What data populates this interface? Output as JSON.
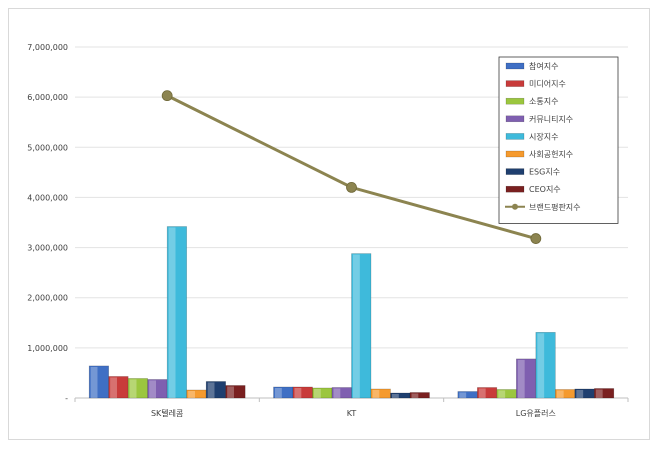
{
  "chart_data": {
    "type": "bar",
    "categories": [
      "SK텔레콤",
      "KT",
      "LG유플러스"
    ],
    "ylim": [
      0,
      7000000
    ],
    "yticks": [
      "-",
      "1,000,000",
      "2,000,000",
      "3,000,000",
      "4,000,000",
      "5,000,000",
      "6,000,000",
      "7,000,000"
    ],
    "grid": true,
    "legend_position": "top-right",
    "series": [
      {
        "name": "참여지수",
        "color": "#3f6fc4",
        "values": [
          640000,
          220000,
          130000
        ]
      },
      {
        "name": "미디어지수",
        "color": "#c83b3a",
        "values": [
          430000,
          220000,
          210000
        ]
      },
      {
        "name": "소통지수",
        "color": "#9bc63e",
        "values": [
          390000,
          200000,
          170000
        ]
      },
      {
        "name": "커뮤니티지수",
        "color": "#7f5fb0",
        "values": [
          370000,
          210000,
          780000
        ]
      },
      {
        "name": "시장지수",
        "color": "#3ebadb",
        "values": [
          3420000,
          2880000,
          1310000
        ]
      },
      {
        "name": "사회공헌지수",
        "color": "#f59a2e",
        "values": [
          160000,
          180000,
          170000
        ]
      },
      {
        "name": "ESG지수",
        "color": "#1f3f6f",
        "values": [
          330000,
          100000,
          180000
        ]
      },
      {
        "name": "CEO지수",
        "color": "#7a2020",
        "values": [
          250000,
          110000,
          190000
        ]
      }
    ],
    "line_series": {
      "name": "브랜드평판지수",
      "color": "#8c8450",
      "values": [
        6030000,
        4200000,
        3180000
      ]
    }
  }
}
